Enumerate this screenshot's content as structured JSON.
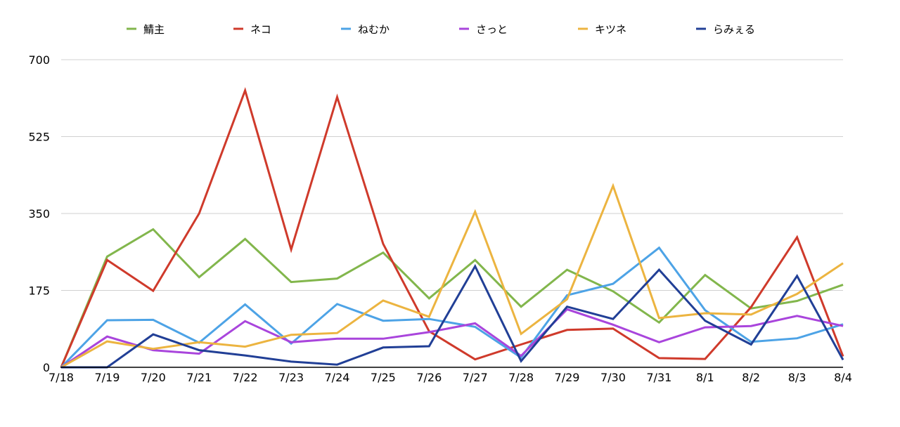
{
  "chart_data": {
    "type": "line",
    "title": "",
    "xlabel": "",
    "ylabel": "",
    "categories": [
      "7/18",
      "7/19",
      "7/20",
      "7/21",
      "7/22",
      "7/23",
      "7/24",
      "7/25",
      "7/26",
      "7/27",
      "7/28",
      "7/29",
      "7/30",
      "7/31",
      "8/1",
      "8/2",
      "8/3",
      "8/4"
    ],
    "ylim": [
      0,
      700
    ],
    "yticks": [
      "0",
      "175",
      "350",
      "525",
      "700"
    ],
    "grid": true,
    "legend": "top",
    "series": [
      {
        "name": "鯖主",
        "color": "#82b64c",
        "values": [
          0,
          252,
          314,
          205,
          292,
          194,
          202,
          261,
          157,
          244,
          138,
          222,
          173,
          102,
          210,
          134,
          151,
          188
        ]
      },
      {
        "name": "ネコ",
        "color": "#cf3a2b",
        "values": [
          0,
          244,
          174,
          350,
          630,
          268,
          615,
          281,
          82,
          18,
          52,
          85,
          88,
          21,
          19,
          137,
          296,
          25
        ]
      },
      {
        "name": "ねむか",
        "color": "#4da3e6",
        "values": [
          0,
          107,
          108,
          56,
          143,
          54,
          144,
          106,
          110,
          92,
          22,
          164,
          190,
          272,
          130,
          58,
          66,
          98
        ]
      },
      {
        "name": "さっと",
        "color": "#a945dc",
        "values": [
          0,
          70,
          39,
          31,
          105,
          57,
          65,
          65,
          80,
          100,
          26,
          132,
          97,
          57,
          91,
          94,
          117,
          94
        ]
      },
      {
        "name": "キツネ",
        "color": "#ecb440",
        "values": [
          0,
          59,
          42,
          57,
          47,
          74,
          78,
          152,
          115,
          354,
          76,
          155,
          413,
          112,
          123,
          120,
          167,
          237
        ]
      },
      {
        "name": "らみぇる",
        "color": "#213f96",
        "values": [
          0,
          0,
          75,
          39,
          27,
          13,
          6,
          45,
          48,
          230,
          14,
          138,
          110,
          222,
          106,
          52,
          208,
          17
        ]
      }
    ]
  }
}
